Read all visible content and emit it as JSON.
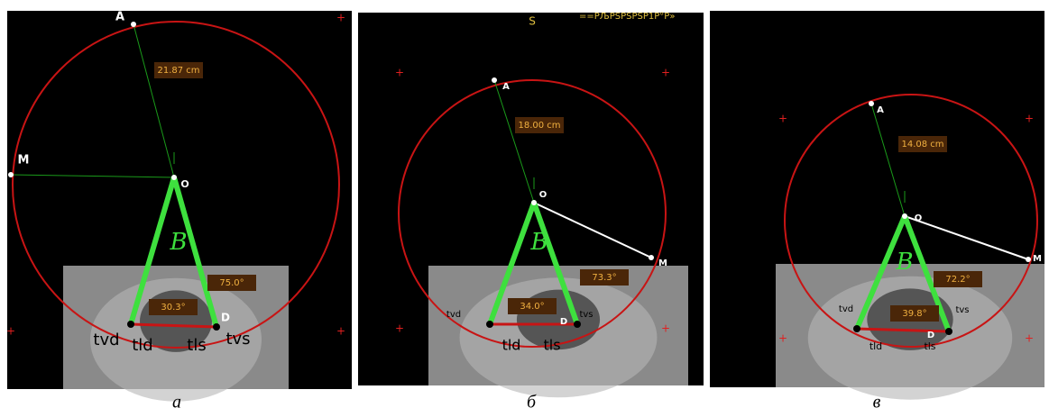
{
  "panels": [
    {
      "caption": "а",
      "radius_label": "21.87 cm",
      "angle_label": "75.0°",
      "intercanine_label": "30.3°",
      "beta_label": "B",
      "point_labels": [
        "A",
        "M",
        "O",
        "D",
        "tvd",
        "tld",
        "tls",
        "tvs"
      ]
    },
    {
      "caption": "б",
      "radius_label": "18.00 cm",
      "angle_label": "73.3°",
      "intercanine_label": "34.0°",
      "beta_label": "B",
      "point_labels": [
        "A",
        "M",
        "O",
        "D",
        "tvd",
        "tld",
        "tls",
        "tvs"
      ],
      "header_labels": [
        "S",
        "==PЉPSPSPSP1P°P»"
      ]
    },
    {
      "caption": "в",
      "radius_label": "14.08 cm",
      "angle_label": "72.2°",
      "intercanine_label": "39.8°",
      "beta_label": "B",
      "point_labels": [
        "A",
        "M",
        "O",
        "D",
        "tvd",
        "tld",
        "tls",
        "tvs"
      ]
    }
  ]
}
